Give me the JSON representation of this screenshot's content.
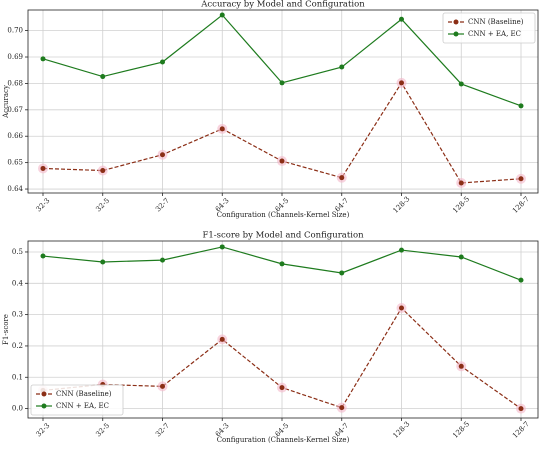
{
  "chart_data": [
    {
      "type": "line",
      "title": "Accuracy by Model and Configuration",
      "x_label": "Configuration (Channels-Kernel Size)",
      "y_label": "Accuracy",
      "categories": [
        "32-3",
        "32-5",
        "32-7",
        "64-3",
        "64-5",
        "64-7",
        "128-3",
        "128-5",
        "128-7"
      ],
      "series": [
        {
          "name": "CNN (Baseline)",
          "color": "#8b2e16",
          "dashed": true,
          "values": [
            0.6478,
            0.647,
            0.653,
            0.6628,
            0.6506,
            0.6443,
            0.6802,
            0.6423,
            0.6439
          ]
        },
        {
          "name": "CNN + EA, EC",
          "color": "#1e7b1e",
          "dashed": false,
          "values": [
            0.6893,
            0.6826,
            0.6881,
            0.7059,
            0.6802,
            0.6862,
            0.7043,
            0.6798,
            0.6715
          ]
        }
      ],
      "ylim": [
        0.6385,
        0.7078
      ],
      "yticks": [
        0.64,
        0.65,
        0.66,
        0.67,
        0.68,
        0.69,
        {
          "value": 0.7,
          "label": "0.70"
        }
      ],
      "grid": true,
      "legend": "upper right"
    },
    {
      "type": "line",
      "title": "F1-score by Model and Configuration",
      "x_label": "Configuration (Channels-Kernel Size)",
      "y_label": "F1-score",
      "categories": [
        "32-3",
        "32-5",
        "32-7",
        "64-3",
        "64-5",
        "64-7",
        "128-3",
        "128-5",
        "128-7"
      ],
      "series": [
        {
          "name": "CNN (Baseline)",
          "color": "#8b2e16",
          "dashed": true,
          "values": [
            0.058,
            0.077,
            0.071,
            0.221,
            0.067,
            0.003,
            0.321,
            0.135,
            0.0
          ]
        },
        {
          "name": "CNN + EA, EC",
          "color": "#1e7b1e",
          "dashed": false,
          "values": [
            0.487,
            0.468,
            0.474,
            0.516,
            0.462,
            0.433,
            0.506,
            0.484,
            0.41
          ]
        }
      ],
      "ylim": [
        -0.03,
        0.535
      ],
      "yticks": [
        {
          "value": 0,
          "label": "0.0"
        },
        0.1,
        0.2,
        0.3,
        0.4,
        0.5
      ],
      "grid": true,
      "legend": "lower left"
    }
  ]
}
